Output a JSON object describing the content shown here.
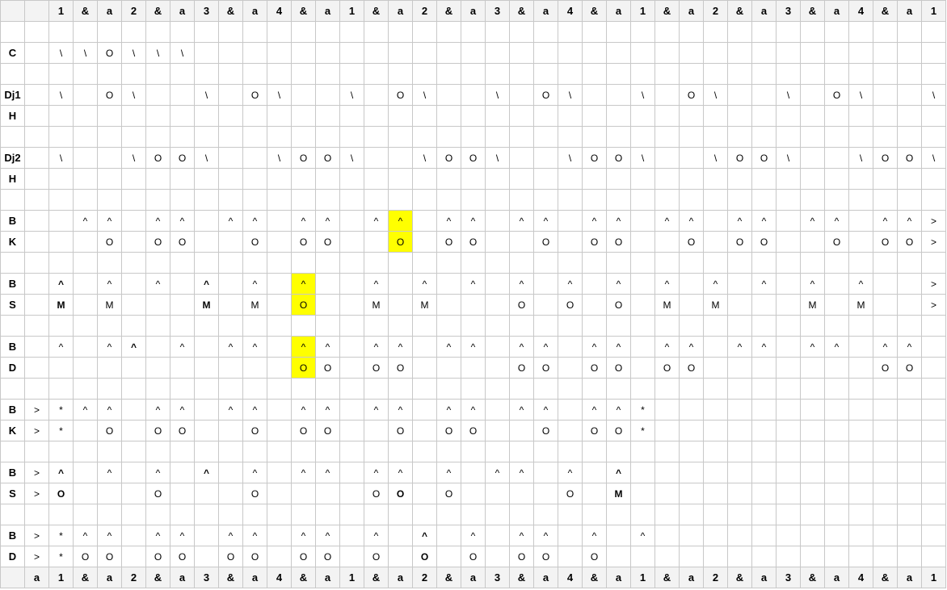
{
  "header": [
    "",
    "",
    "1",
    "&",
    "a",
    "2",
    "&",
    "a",
    "3",
    "&",
    "a",
    "4",
    "&",
    "a",
    "1",
    "&",
    "a",
    "2",
    "&",
    "a",
    "3",
    "&",
    "a",
    "4",
    "&",
    "a",
    "1",
    "&",
    "a",
    "2",
    "&",
    "a",
    "3",
    "&",
    "a",
    "4",
    "&",
    "a",
    "1"
  ],
  "footer": [
    "",
    "a",
    "1",
    "&",
    "a",
    "2",
    "&",
    "a",
    "3",
    "&",
    "a",
    "4",
    "&",
    "a",
    "1",
    "&",
    "a",
    "2",
    "&",
    "a",
    "3",
    "&",
    "a",
    "4",
    "&",
    "a",
    "1",
    "&",
    "a",
    "2",
    "&",
    "a",
    "3",
    "&",
    "a",
    "4",
    "&",
    "a",
    "1"
  ],
  "rows": [
    {
      "label": "",
      "cells": []
    },
    {
      "label": "C",
      "cells": [
        "",
        "\\",
        "\\",
        "O",
        "\\",
        "\\",
        "\\"
      ]
    },
    {
      "label": "",
      "cells": []
    },
    {
      "label": "Dj1",
      "cells": [
        "",
        "\\",
        "",
        "O",
        "\\",
        "",
        "",
        "\\",
        "",
        "O",
        "\\",
        "",
        "",
        "\\",
        "",
        "O",
        "\\",
        "",
        "",
        "\\",
        "",
        "O",
        "\\",
        "",
        "",
        "\\",
        "",
        "O",
        "\\",
        "",
        "",
        "\\",
        "",
        "O",
        "\\",
        "",
        "",
        "\\"
      ]
    },
    {
      "label": "H",
      "cells": []
    },
    {
      "label": "",
      "cells": []
    },
    {
      "label": "Dj2",
      "cells": [
        "",
        "\\",
        "",
        "",
        "\\",
        "O",
        "O",
        "\\",
        "",
        "",
        "\\",
        "O",
        "O",
        "\\",
        "",
        "",
        "\\",
        "O",
        "O",
        "\\",
        "",
        "",
        "\\",
        "O",
        "O",
        "\\",
        "",
        "",
        "\\",
        "O",
        "O",
        "\\",
        "",
        "",
        "\\",
        "O",
        "O",
        "\\"
      ]
    },
    {
      "label": "H",
      "cells": []
    },
    {
      "label": "",
      "cells": []
    },
    {
      "label": "B",
      "cells": [
        "",
        "",
        "^",
        "^",
        "",
        "^",
        "^",
        "",
        "^",
        "^",
        "",
        "^",
        "^",
        "",
        "^",
        "^",
        "",
        "^",
        "^",
        "",
        "^",
        "^",
        "",
        "^",
        "^",
        "",
        "^",
        "^",
        "",
        "^",
        "^",
        "",
        "^",
        "^",
        "",
        "^",
        "^",
        ">"
      ],
      "hl": [
        15
      ]
    },
    {
      "label": "K",
      "cells": [
        "",
        "",
        "",
        "O",
        "",
        "O",
        "O",
        "",
        "",
        "O",
        "",
        "O",
        "O",
        "",
        "",
        "O",
        "",
        "O",
        "O",
        "",
        "",
        "O",
        "",
        "O",
        "O",
        "",
        "",
        "O",
        "",
        "O",
        "O",
        "",
        "",
        "O",
        "",
        "O",
        "O",
        ">"
      ],
      "hl": [
        15
      ]
    },
    {
      "label": "",
      "cells": []
    },
    {
      "label": "B",
      "cells": [
        "",
        "^",
        "",
        "^",
        "",
        "^",
        "",
        "^",
        "",
        "^",
        "",
        "^",
        "",
        "",
        "^",
        "",
        "^",
        "",
        "^",
        "",
        "^",
        "",
        "^",
        "",
        "^",
        "",
        "^",
        "",
        "^",
        "",
        "^",
        "",
        "^",
        "",
        "^",
        "",
        "",
        ">"
      ],
      "hl": [
        11
      ],
      "bold": [
        1,
        7,
        13,
        19,
        25,
        31
      ]
    },
    {
      "label": "S",
      "cells": [
        "",
        "M",
        "",
        "M",
        "",
        "",
        "",
        "M",
        "",
        "M",
        "",
        "O",
        "",
        "",
        "M",
        "",
        "M",
        "",
        "",
        "",
        "O",
        "",
        "O",
        "",
        "O",
        "",
        "M",
        "",
        "M",
        "",
        "",
        "",
        "M",
        "",
        "M",
        "",
        "",
        ">"
      ],
      "hl": [
        11
      ],
      "bold": [
        1,
        7,
        13,
        19,
        25,
        31
      ]
    },
    {
      "label": "",
      "cells": []
    },
    {
      "label": "B",
      "cells": [
        "",
        "^",
        "",
        "^",
        "^",
        "",
        "^",
        "",
        "^",
        "^",
        "",
        "^",
        "^",
        "",
        "^",
        "^",
        "",
        "^",
        "^",
        "",
        "^",
        "^",
        "",
        "^",
        "^",
        "",
        "^",
        "^",
        "",
        "^",
        "^",
        "",
        "^",
        "^",
        "",
        "^",
        "^",
        ""
      ],
      "hl": [
        11
      ],
      "bold": [
        4
      ]
    },
    {
      "label": "D",
      "cells": [
        "",
        "",
        "",
        "",
        "",
        "",
        "",
        "",
        "",
        "",
        "",
        "O",
        "O",
        "",
        "O",
        "O",
        "",
        "",
        "",
        "",
        "O",
        "O",
        "",
        "O",
        "O",
        "",
        "O",
        "O",
        "",
        "",
        "",
        "",
        "",
        "",
        "",
        "O",
        "O",
        ""
      ],
      "hl": [
        11
      ]
    },
    {
      "label": "",
      "cells": []
    },
    {
      "label": "B",
      "cells": [
        ">",
        "*",
        "^",
        "^",
        "",
        "^",
        "^",
        "",
        "^",
        "^",
        "",
        "^",
        "^",
        "",
        "^",
        "^",
        "",
        "^",
        "^",
        "",
        "^",
        "^",
        "",
        "^",
        "^",
        "*"
      ]
    },
    {
      "label": "K",
      "cells": [
        ">",
        "*",
        "",
        "O",
        "",
        "O",
        "O",
        "",
        "",
        "O",
        "",
        "O",
        "O",
        "",
        "",
        "O",
        "",
        "O",
        "O",
        "",
        "",
        "O",
        "",
        "O",
        "O",
        "*"
      ]
    },
    {
      "label": "",
      "cells": []
    },
    {
      "label": "B",
      "cells": [
        ">",
        "^",
        "",
        "^",
        "",
        "^",
        "",
        "^",
        "",
        "^",
        "",
        "^",
        "^",
        "",
        "^",
        "^",
        "",
        "^",
        "",
        "^",
        "^",
        "",
        "^",
        "",
        "^"
      ],
      "bold": [
        1,
        7,
        16,
        24
      ]
    },
    {
      "label": "S",
      "cells": [
        ">",
        "O",
        "",
        "",
        "",
        "O",
        "",
        "",
        "",
        "O",
        "",
        "",
        "",
        "",
        "O",
        "O",
        "",
        "O",
        "",
        "",
        "",
        "",
        "O",
        "",
        "M"
      ],
      "bold": [
        1,
        15,
        24
      ]
    },
    {
      "label": "",
      "cells": []
    },
    {
      "label": "B",
      "cells": [
        ">",
        "*",
        "^",
        "^",
        "",
        "^",
        "^",
        "",
        "^",
        "^",
        "",
        "^",
        "^",
        "",
        "^",
        "",
        "^",
        "",
        "^",
        "",
        "^",
        "^",
        "",
        "^",
        "",
        "^"
      ],
      "bold": [
        16,
        24
      ]
    },
    {
      "label": "D",
      "cells": [
        ">",
        "*",
        "O",
        "O",
        "",
        "O",
        "O",
        "",
        "O",
        "O",
        "",
        "O",
        "O",
        "",
        "O",
        "",
        "O",
        "",
        "O",
        "",
        "O",
        "O",
        "",
        "O"
      ],
      "bold": [
        16
      ]
    }
  ]
}
